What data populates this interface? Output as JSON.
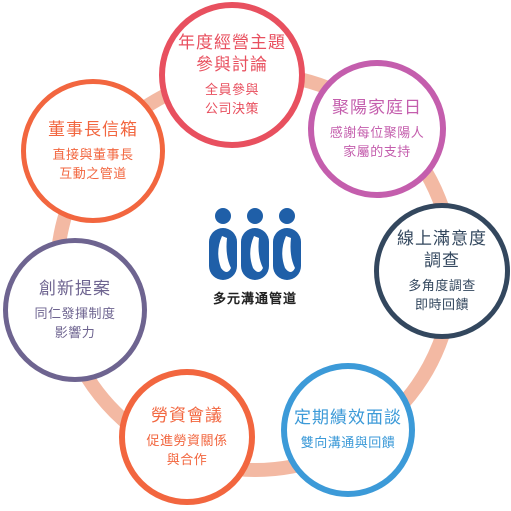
{
  "center": {
    "label": "多元溝通管道",
    "logo_icon": "three-people-logo-icon",
    "logo_color": "#1f5fa8"
  },
  "ring_color": "#f3b9a3",
  "nodes": [
    {
      "title": "年度經營主題\n參與討論",
      "desc": "全員參與\n公司決策",
      "color": "#e8505f"
    },
    {
      "title": "聚陽家庭日",
      "desc": "感謝每位聚陽人\n家屬的支持",
      "color": "#c45ead"
    },
    {
      "title": "線上滿意度\n調查",
      "desc": "多角度調查\n即時回饋",
      "color": "#33475e"
    },
    {
      "title": "定期績效面談",
      "desc": "雙向溝通與回饋",
      "color": "#3c9ad8"
    },
    {
      "title": "勞資會議",
      "desc": "促進勞資關係\n與合作",
      "color": "#f2663f"
    },
    {
      "title": "創新提案",
      "desc": "同仁發揮制度\n影響力",
      "color": "#6e6490"
    },
    {
      "title": "董事長信箱",
      "desc": "直接與董事長\n互動之管道",
      "color": "#f2663f"
    }
  ]
}
